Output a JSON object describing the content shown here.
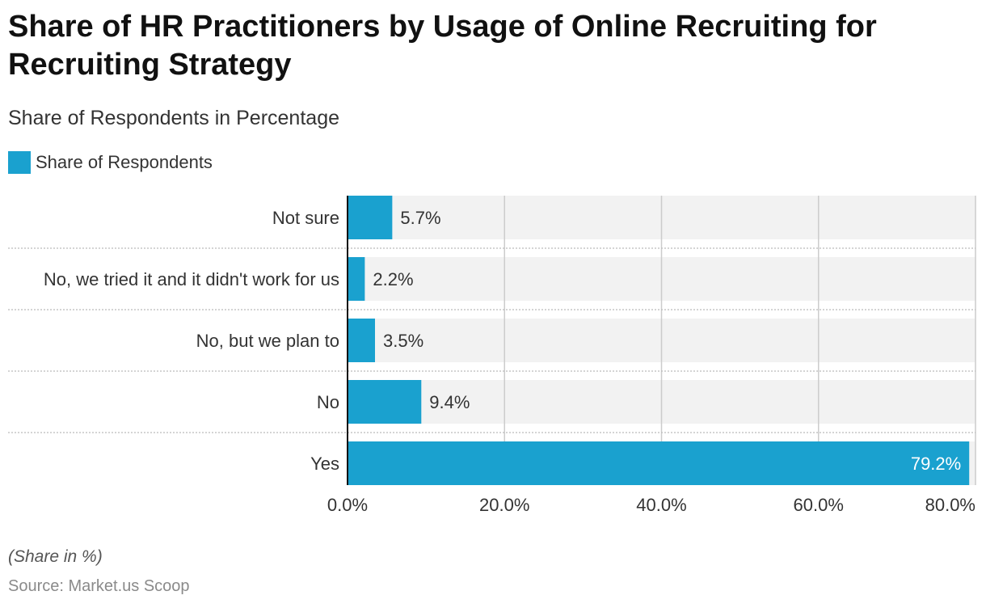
{
  "title": "Share of HR Practitioners by Usage of Online Recruiting for Recruiting Strategy",
  "subtitle": "Share of Respondents in Percentage",
  "legend": {
    "label": "Share of Respondents"
  },
  "colors": {
    "bar": "#1aa1cf",
    "track": "#f2f2f2",
    "grid": "#cccccc",
    "separator": "#bbbbbb",
    "axis": "#111111",
    "label_dark": "#333333",
    "label_light": "#ffffff"
  },
  "footnote": "(Share in %)",
  "source": "Source: Market.us Scoop",
  "chart_data": {
    "type": "bar",
    "orientation": "horizontal",
    "categories": [
      "Not sure",
      "No, we tried it and it didn't work for us",
      "No, but we plan to",
      "No",
      "Yes"
    ],
    "series": [
      {
        "name": "Share of Respondents",
        "values": [
          5.7,
          2.2,
          3.5,
          9.4,
          79.2
        ]
      }
    ],
    "value_labels": [
      "5.7%",
      "2.2%",
      "3.5%",
      "9.4%",
      "79.2%"
    ],
    "xlim": [
      0,
      80
    ],
    "xticks": [
      0,
      20,
      40,
      60,
      80
    ],
    "xtick_labels": [
      "0.0%",
      "20.0%",
      "40.0%",
      "60.0%",
      "80.0%"
    ],
    "grid": true,
    "legend_position": "top-left"
  }
}
